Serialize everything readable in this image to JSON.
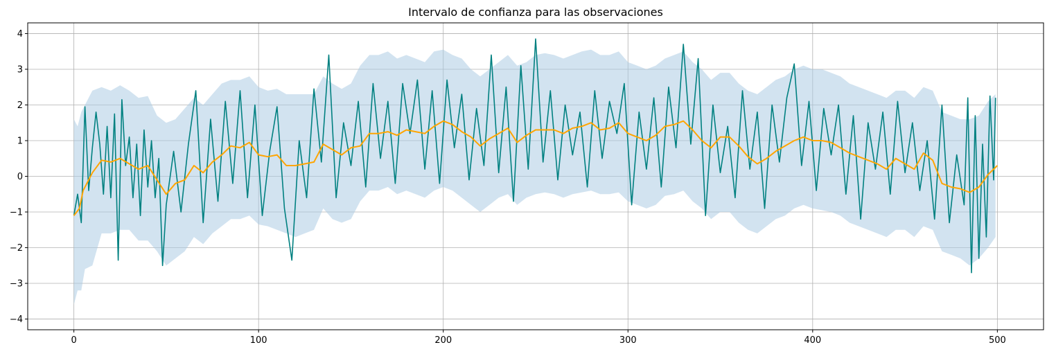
{
  "chart_data": {
    "type": "line",
    "title": "Intervalo de confianza para las observaciones",
    "xlabel": "",
    "ylabel": "",
    "xlim": [
      -25,
      525
    ],
    "ylim": [
      -4.3,
      4.3
    ],
    "grid": true,
    "x_ticks": [
      0,
      100,
      200,
      300,
      400,
      500
    ],
    "y_ticks": [
      -4,
      -3,
      -2,
      -1,
      0,
      1,
      2,
      3,
      4
    ],
    "x_tick_labels": [
      "0",
      "100",
      "200",
      "300",
      "400",
      "500"
    ],
    "y_tick_labels": [
      "−4",
      "−3",
      "−2",
      "−1",
      "0",
      "1",
      "2",
      "3",
      "4"
    ],
    "colors": {
      "observations": "#008080",
      "mean": "#FFA500",
      "band": "#a9c9e3"
    },
    "series": [
      {
        "role": "observations",
        "color": "#008080",
        "x": [
          0,
          2,
          4,
          6,
          8,
          10,
          12,
          14,
          16,
          18,
          20,
          22,
          24,
          26,
          28,
          30,
          32,
          34,
          36,
          38,
          40,
          42,
          44,
          46,
          48,
          50,
          54,
          58,
          62,
          66,
          70,
          74,
          78,
          82,
          86,
          90,
          94,
          98,
          102,
          106,
          110,
          114,
          118,
          122,
          126,
          130,
          134,
          138,
          142,
          146,
          150,
          154,
          158,
          162,
          166,
          170,
          174,
          178,
          182,
          186,
          190,
          194,
          198,
          202,
          206,
          210,
          214,
          218,
          222,
          226,
          230,
          234,
          238,
          242,
          246,
          250,
          254,
          258,
          262,
          266,
          270,
          274,
          278,
          282,
          286,
          290,
          294,
          298,
          302,
          306,
          310,
          314,
          318,
          322,
          326,
          330,
          334,
          338,
          342,
          346,
          350,
          354,
          358,
          362,
          366,
          370,
          374,
          378,
          382,
          386,
          390,
          394,
          398,
          402,
          406,
          410,
          414,
          418,
          422,
          426,
          430,
          434,
          438,
          442,
          446,
          450,
          454,
          458,
          462,
          466,
          470,
          474,
          478,
          482,
          484,
          486,
          488,
          490,
          492,
          494,
          496,
          498,
          499
        ],
        "y": [
          -1.1,
          -0.5,
          -1.3,
          1.95,
          -0.4,
          0.8,
          1.8,
          0.9,
          -0.5,
          1.4,
          -0.6,
          1.75,
          -2.35,
          2.15,
          0.3,
          1.1,
          -0.6,
          0.9,
          -1.1,
          1.3,
          -0.3,
          1.0,
          -0.6,
          0.5,
          -2.5,
          -0.8,
          0.7,
          -1.0,
          0.9,
          2.4,
          -1.3,
          1.6,
          -0.7,
          2.1,
          -0.2,
          2.4,
          -0.6,
          2.0,
          -1.1,
          0.7,
          1.95,
          -0.9,
          -2.35,
          1.0,
          -0.6,
          2.45,
          0.4,
          3.4,
          -0.6,
          1.5,
          0.3,
          2.1,
          -0.3,
          2.6,
          0.5,
          2.1,
          -0.2,
          2.6,
          1.2,
          2.7,
          0.2,
          2.4,
          -0.2,
          2.7,
          0.8,
          2.3,
          -0.1,
          1.9,
          0.3,
          3.4,
          0.1,
          2.5,
          -0.7,
          3.1,
          0.2,
          3.85,
          0.4,
          2.4,
          -0.1,
          2.0,
          0.6,
          1.8,
          -0.3,
          2.4,
          0.5,
          2.1,
          1.2,
          2.6,
          -0.8,
          1.8,
          0.2,
          2.2,
          -0.3,
          2.5,
          0.8,
          3.7,
          0.9,
          3.3,
          -1.1,
          2.0,
          0.1,
          1.4,
          -0.6,
          2.4,
          0.2,
          1.8,
          -0.9,
          2.0,
          0.4,
          2.2,
          3.15,
          0.3,
          2.1,
          -0.4,
          1.9,
          0.6,
          2.0,
          -0.5,
          1.7,
          -1.2,
          1.5,
          0.2,
          1.8,
          -0.5,
          2.1,
          0.1,
          1.5,
          -0.4,
          1.0,
          -1.2,
          2.0,
          -1.3,
          0.6,
          -0.8,
          2.2,
          -2.7,
          1.7,
          -2.3,
          0.9,
          -1.7,
          2.25,
          -0.1,
          2.2
        ]
      },
      {
        "role": "mean",
        "color": "#FFA500",
        "x": [
          0,
          3,
          5,
          10,
          15,
          20,
          25,
          30,
          35,
          40,
          45,
          50,
          55,
          60,
          65,
          70,
          75,
          80,
          85,
          90,
          95,
          100,
          105,
          110,
          115,
          120,
          125,
          130,
          135,
          140,
          145,
          150,
          155,
          160,
          165,
          170,
          175,
          180,
          185,
          190,
          195,
          200,
          205,
          210,
          215,
          220,
          225,
          230,
          235,
          240,
          245,
          250,
          255,
          260,
          265,
          270,
          275,
          280,
          285,
          290,
          295,
          300,
          305,
          310,
          315,
          320,
          325,
          330,
          335,
          340,
          345,
          350,
          355,
          360,
          365,
          370,
          375,
          380,
          385,
          390,
          395,
          400,
          405,
          410,
          415,
          420,
          425,
          430,
          435,
          440,
          445,
          450,
          455,
          460,
          465,
          470,
          475,
          480,
          485,
          490,
          495,
          500
        ],
        "y": [
          -1.1,
          -0.9,
          -0.4,
          0.1,
          0.45,
          0.4,
          0.5,
          0.35,
          0.2,
          0.3,
          -0.1,
          -0.5,
          -0.2,
          -0.1,
          0.3,
          0.1,
          0.4,
          0.6,
          0.85,
          0.8,
          0.95,
          0.6,
          0.55,
          0.6,
          0.3,
          0.3,
          0.35,
          0.4,
          0.9,
          0.75,
          0.6,
          0.8,
          0.85,
          1.2,
          1.2,
          1.25,
          1.15,
          1.3,
          1.25,
          1.2,
          1.4,
          1.55,
          1.45,
          1.25,
          1.1,
          0.85,
          1.05,
          1.2,
          1.35,
          0.95,
          1.15,
          1.3,
          1.3,
          1.3,
          1.2,
          1.35,
          1.4,
          1.5,
          1.3,
          1.35,
          1.5,
          1.2,
          1.1,
          1.0,
          1.15,
          1.4,
          1.45,
          1.55,
          1.3,
          1.0,
          0.8,
          1.1,
          1.1,
          0.85,
          0.55,
          0.35,
          0.5,
          0.7,
          0.85,
          1.0,
          1.1,
          1.0,
          1.0,
          0.95,
          0.8,
          0.65,
          0.55,
          0.45,
          0.35,
          0.2,
          0.5,
          0.35,
          0.2,
          0.65,
          0.45,
          -0.2,
          -0.3,
          -0.35,
          -0.45,
          -0.3,
          0.05,
          0.3
        ]
      }
    ],
    "band": {
      "color": "#a9c9e3",
      "x": [
        0,
        2,
        4,
        6,
        10,
        15,
        20,
        25,
        30,
        35,
        40,
        45,
        50,
        55,
        60,
        65,
        70,
        75,
        80,
        85,
        90,
        95,
        100,
        105,
        110,
        115,
        120,
        125,
        130,
        135,
        140,
        145,
        150,
        155,
        160,
        165,
        170,
        175,
        180,
        185,
        190,
        195,
        200,
        205,
        210,
        215,
        220,
        225,
        230,
        235,
        240,
        245,
        250,
        255,
        260,
        265,
        270,
        275,
        280,
        285,
        290,
        295,
        300,
        305,
        310,
        315,
        320,
        325,
        330,
        335,
        340,
        345,
        350,
        355,
        360,
        365,
        370,
        375,
        380,
        385,
        390,
        395,
        400,
        405,
        410,
        415,
        420,
        425,
        430,
        435,
        440,
        445,
        450,
        455,
        460,
        465,
        470,
        475,
        480,
        485,
        490,
        495,
        499
      ],
      "upper": [
        1.6,
        1.4,
        1.8,
        2.0,
        2.4,
        2.5,
        2.4,
        2.55,
        2.4,
        2.2,
        2.25,
        1.7,
        1.5,
        1.6,
        1.9,
        2.2,
        2.0,
        2.3,
        2.6,
        2.7,
        2.7,
        2.8,
        2.5,
        2.4,
        2.45,
        2.3,
        2.3,
        2.3,
        2.3,
        2.8,
        2.6,
        2.45,
        2.6,
        3.1,
        3.4,
        3.4,
        3.5,
        3.3,
        3.4,
        3.3,
        3.2,
        3.5,
        3.55,
        3.4,
        3.3,
        3.0,
        2.8,
        3.0,
        3.2,
        3.4,
        3.1,
        3.2,
        3.4,
        3.45,
        3.4,
        3.3,
        3.4,
        3.5,
        3.55,
        3.4,
        3.4,
        3.5,
        3.2,
        3.1,
        3.0,
        3.1,
        3.3,
        3.4,
        3.5,
        3.2,
        3.0,
        2.7,
        2.9,
        2.9,
        2.6,
        2.4,
        2.3,
        2.5,
        2.7,
        2.8,
        3.0,
        3.1,
        3.0,
        3.0,
        2.9,
        2.8,
        2.6,
        2.5,
        2.4,
        2.3,
        2.2,
        2.4,
        2.4,
        2.2,
        2.5,
        2.4,
        1.8,
        1.7,
        1.6,
        1.6,
        1.7,
        2.1,
        2.3
      ],
      "lower": [
        -3.6,
        -3.2,
        -3.2,
        -2.6,
        -2.5,
        -1.6,
        -1.6,
        -1.5,
        -1.5,
        -1.8,
        -1.8,
        -2.1,
        -2.5,
        -2.3,
        -2.1,
        -1.7,
        -1.9,
        -1.6,
        -1.4,
        -1.2,
        -1.2,
        -1.1,
        -1.35,
        -1.4,
        -1.5,
        -1.6,
        -1.7,
        -1.6,
        -1.5,
        -0.9,
        -1.2,
        -1.3,
        -1.2,
        -0.7,
        -0.4,
        -0.4,
        -0.3,
        -0.5,
        -0.4,
        -0.5,
        -0.6,
        -0.4,
        -0.3,
        -0.4,
        -0.6,
        -0.8,
        -1.0,
        -0.8,
        -0.6,
        -0.5,
        -0.8,
        -0.6,
        -0.5,
        -0.45,
        -0.5,
        -0.6,
        -0.5,
        -0.45,
        -0.4,
        -0.5,
        -0.5,
        -0.45,
        -0.7,
        -0.8,
        -0.9,
        -0.8,
        -0.55,
        -0.5,
        -0.4,
        -0.7,
        -0.9,
        -1.2,
        -1.0,
        -1.0,
        -1.3,
        -1.5,
        -1.6,
        -1.4,
        -1.2,
        -1.1,
        -0.9,
        -0.8,
        -0.9,
        -0.95,
        -1.0,
        -1.1,
        -1.3,
        -1.4,
        -1.5,
        -1.6,
        -1.7,
        -1.5,
        -1.5,
        -1.7,
        -1.4,
        -1.5,
        -2.1,
        -2.2,
        -2.3,
        -2.5,
        -2.3,
        -2.0,
        -1.7
      ]
    }
  }
}
